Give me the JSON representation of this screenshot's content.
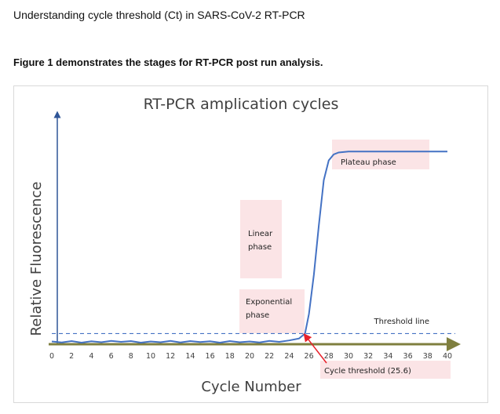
{
  "page": {
    "title": "Understanding cycle threshold (Ct) in SARS-CoV-2 RT-PCR",
    "caption": "Figure 1 demonstrates the stages for RT-PCR post run analysis."
  },
  "chart_data": {
    "type": "line",
    "title": "RT-PCR amplication cycles",
    "xlabel": "Cycle Number",
    "ylabel": "Relative Fluorescence",
    "xlim": [
      0,
      40
    ],
    "ylim": [
      0,
      100
    ],
    "x_ticks": [
      "0",
      "2",
      "4",
      "6",
      "8",
      "10",
      "12",
      "14",
      "16",
      "18",
      "20",
      "22",
      "24",
      "26",
      "28",
      "30",
      "32",
      "34",
      "36",
      "38",
      "40"
    ],
    "series": [
      {
        "x": [
          0,
          1,
          2,
          3,
          4,
          5,
          6,
          7,
          8,
          9,
          10,
          11,
          12,
          13,
          14,
          15,
          16,
          17,
          18,
          19,
          20,
          21,
          22,
          23,
          24,
          25,
          25.6,
          26,
          26.5,
          27,
          27.5,
          28,
          28.5,
          29,
          30,
          32,
          34,
          36,
          38,
          40
        ],
        "y": [
          1,
          0.5,
          1.2,
          0.4,
          1.1,
          0.6,
          1.3,
          0.8,
          1.2,
          0.4,
          1.0,
          0.6,
          1.3,
          0.5,
          1.2,
          0.7,
          1.1,
          0.4,
          1.2,
          0.6,
          1.0,
          0.5,
          1.3,
          0.8,
          1.5,
          2.5,
          5,
          15,
          35,
          60,
          83,
          93,
          96,
          97,
          97.5,
          97.5,
          97.5,
          97.5,
          97.5,
          97.5
        ],
        "color": "#4472c4"
      }
    ],
    "threshold": {
      "y": 5,
      "label": "Threshold line",
      "color": "#4472c4"
    },
    "annotations": {
      "exponential": "Exponential phase",
      "linear": "Linear phase",
      "plateau": "Plateau phase",
      "ct": "Cycle threshold (25.6)",
      "ct_x": 25.6
    },
    "colors": {
      "curve": "#4472c4",
      "x_axis": "#7f7f3f",
      "y_axis": "#2f5597",
      "box": "#fbe4e6",
      "arrow": "#e8202a"
    }
  }
}
